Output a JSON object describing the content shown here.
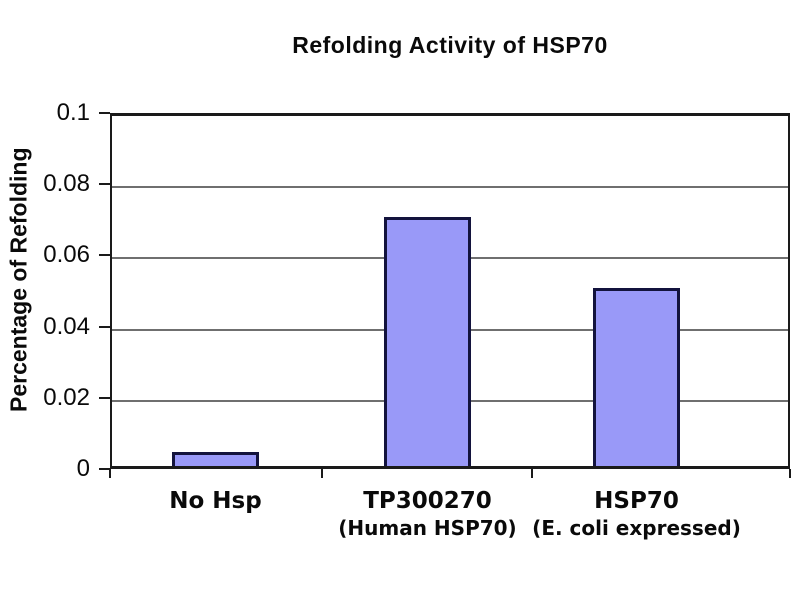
{
  "chart_data": {
    "type": "bar",
    "title": "Refolding Activity of HSP70",
    "ylabel": "Percentage of Refolding",
    "xlabel": "",
    "ylim": [
      0,
      0.1
    ],
    "ytick_labels": [
      "0",
      "0.02",
      "0.04",
      "0.06",
      "0.08",
      "0.1"
    ],
    "grid": true,
    "legend": false,
    "categories": [
      "No Hsp",
      "TP300270 (Human HSP70)",
      "HSP70 (E. coli expressed)"
    ],
    "category_label_lines": [
      [
        "No Hsp"
      ],
      [
        "TP300270",
        "(Human HSP70)"
      ],
      [
        "HSP70",
        "(E. coli expressed)"
      ]
    ],
    "values": [
      0.004,
      0.07,
      0.05
    ],
    "colors": {
      "bar_fill": "#9999f8",
      "bar_border": "#13133d",
      "gridline": "#6f6f6f",
      "axis": "#1a1a1a",
      "background": "#ffffff",
      "text": "#0a0a0a"
    }
  }
}
